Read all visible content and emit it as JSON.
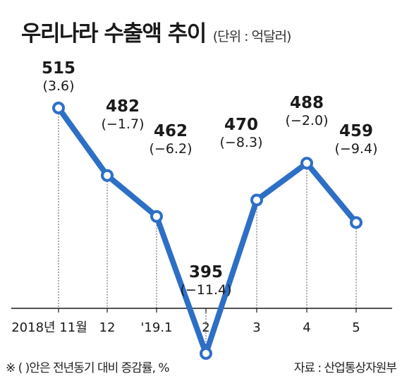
{
  "title": "우리나라 수출액 추이",
  "unit": "(단위 : 억달러)",
  "footnote": "※ (  )안은 전년동기 대비 증감률, %",
  "source": "자료 : 산업통상자원부",
  "colors": {
    "line": "#2e6fc6",
    "marker_fill": "#ffffff",
    "axis": "#1a1a1a",
    "guide": "#555555"
  },
  "chart_data": {
    "type": "line",
    "categories": [
      "2018년 11월",
      "12",
      "'19.1",
      "2",
      "3",
      "4",
      "5"
    ],
    "values": [
      515,
      482,
      462,
      395,
      470,
      488,
      459
    ],
    "value_labels": [
      "515",
      "482",
      "462",
      "395",
      "470",
      "488",
      "459"
    ],
    "change_labels": [
      "(3.6)",
      "(−1.7)",
      "(−6.2)",
      "(−11.4)",
      "(−8.3)",
      "(−2.0)",
      "(−9.4)"
    ],
    "title": "우리나라 수출액 추이",
    "ylabel": "",
    "xlabel": "",
    "grid": false,
    "legend": "none"
  }
}
